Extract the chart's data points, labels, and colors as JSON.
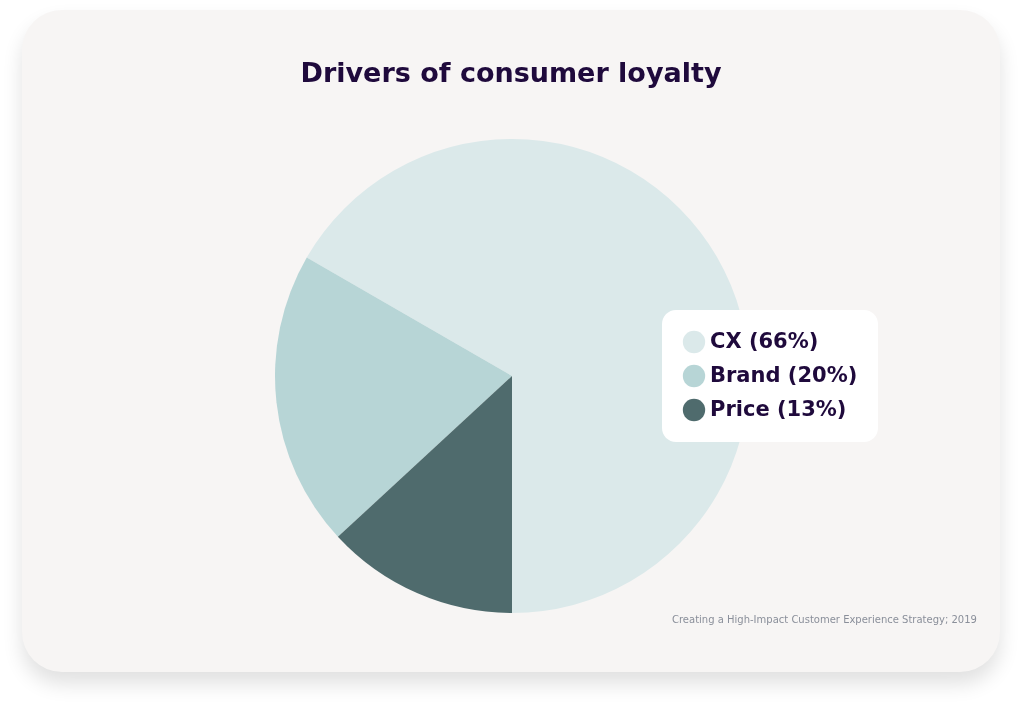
{
  "chart_data": {
    "type": "pie",
    "title": "Drivers of consumer loyalty",
    "categories": [
      "CX (66%)",
      "Brand (20%)",
      "Price (13%)"
    ],
    "values": [
      66,
      20,
      13
    ],
    "colors": [
      "#dbe9ea",
      "#b7d5d6",
      "#4f6b6d"
    ],
    "legend": "right",
    "annotations": [
      "Creating a High-Impact Customer Experience Strategy; 2019"
    ]
  }
}
